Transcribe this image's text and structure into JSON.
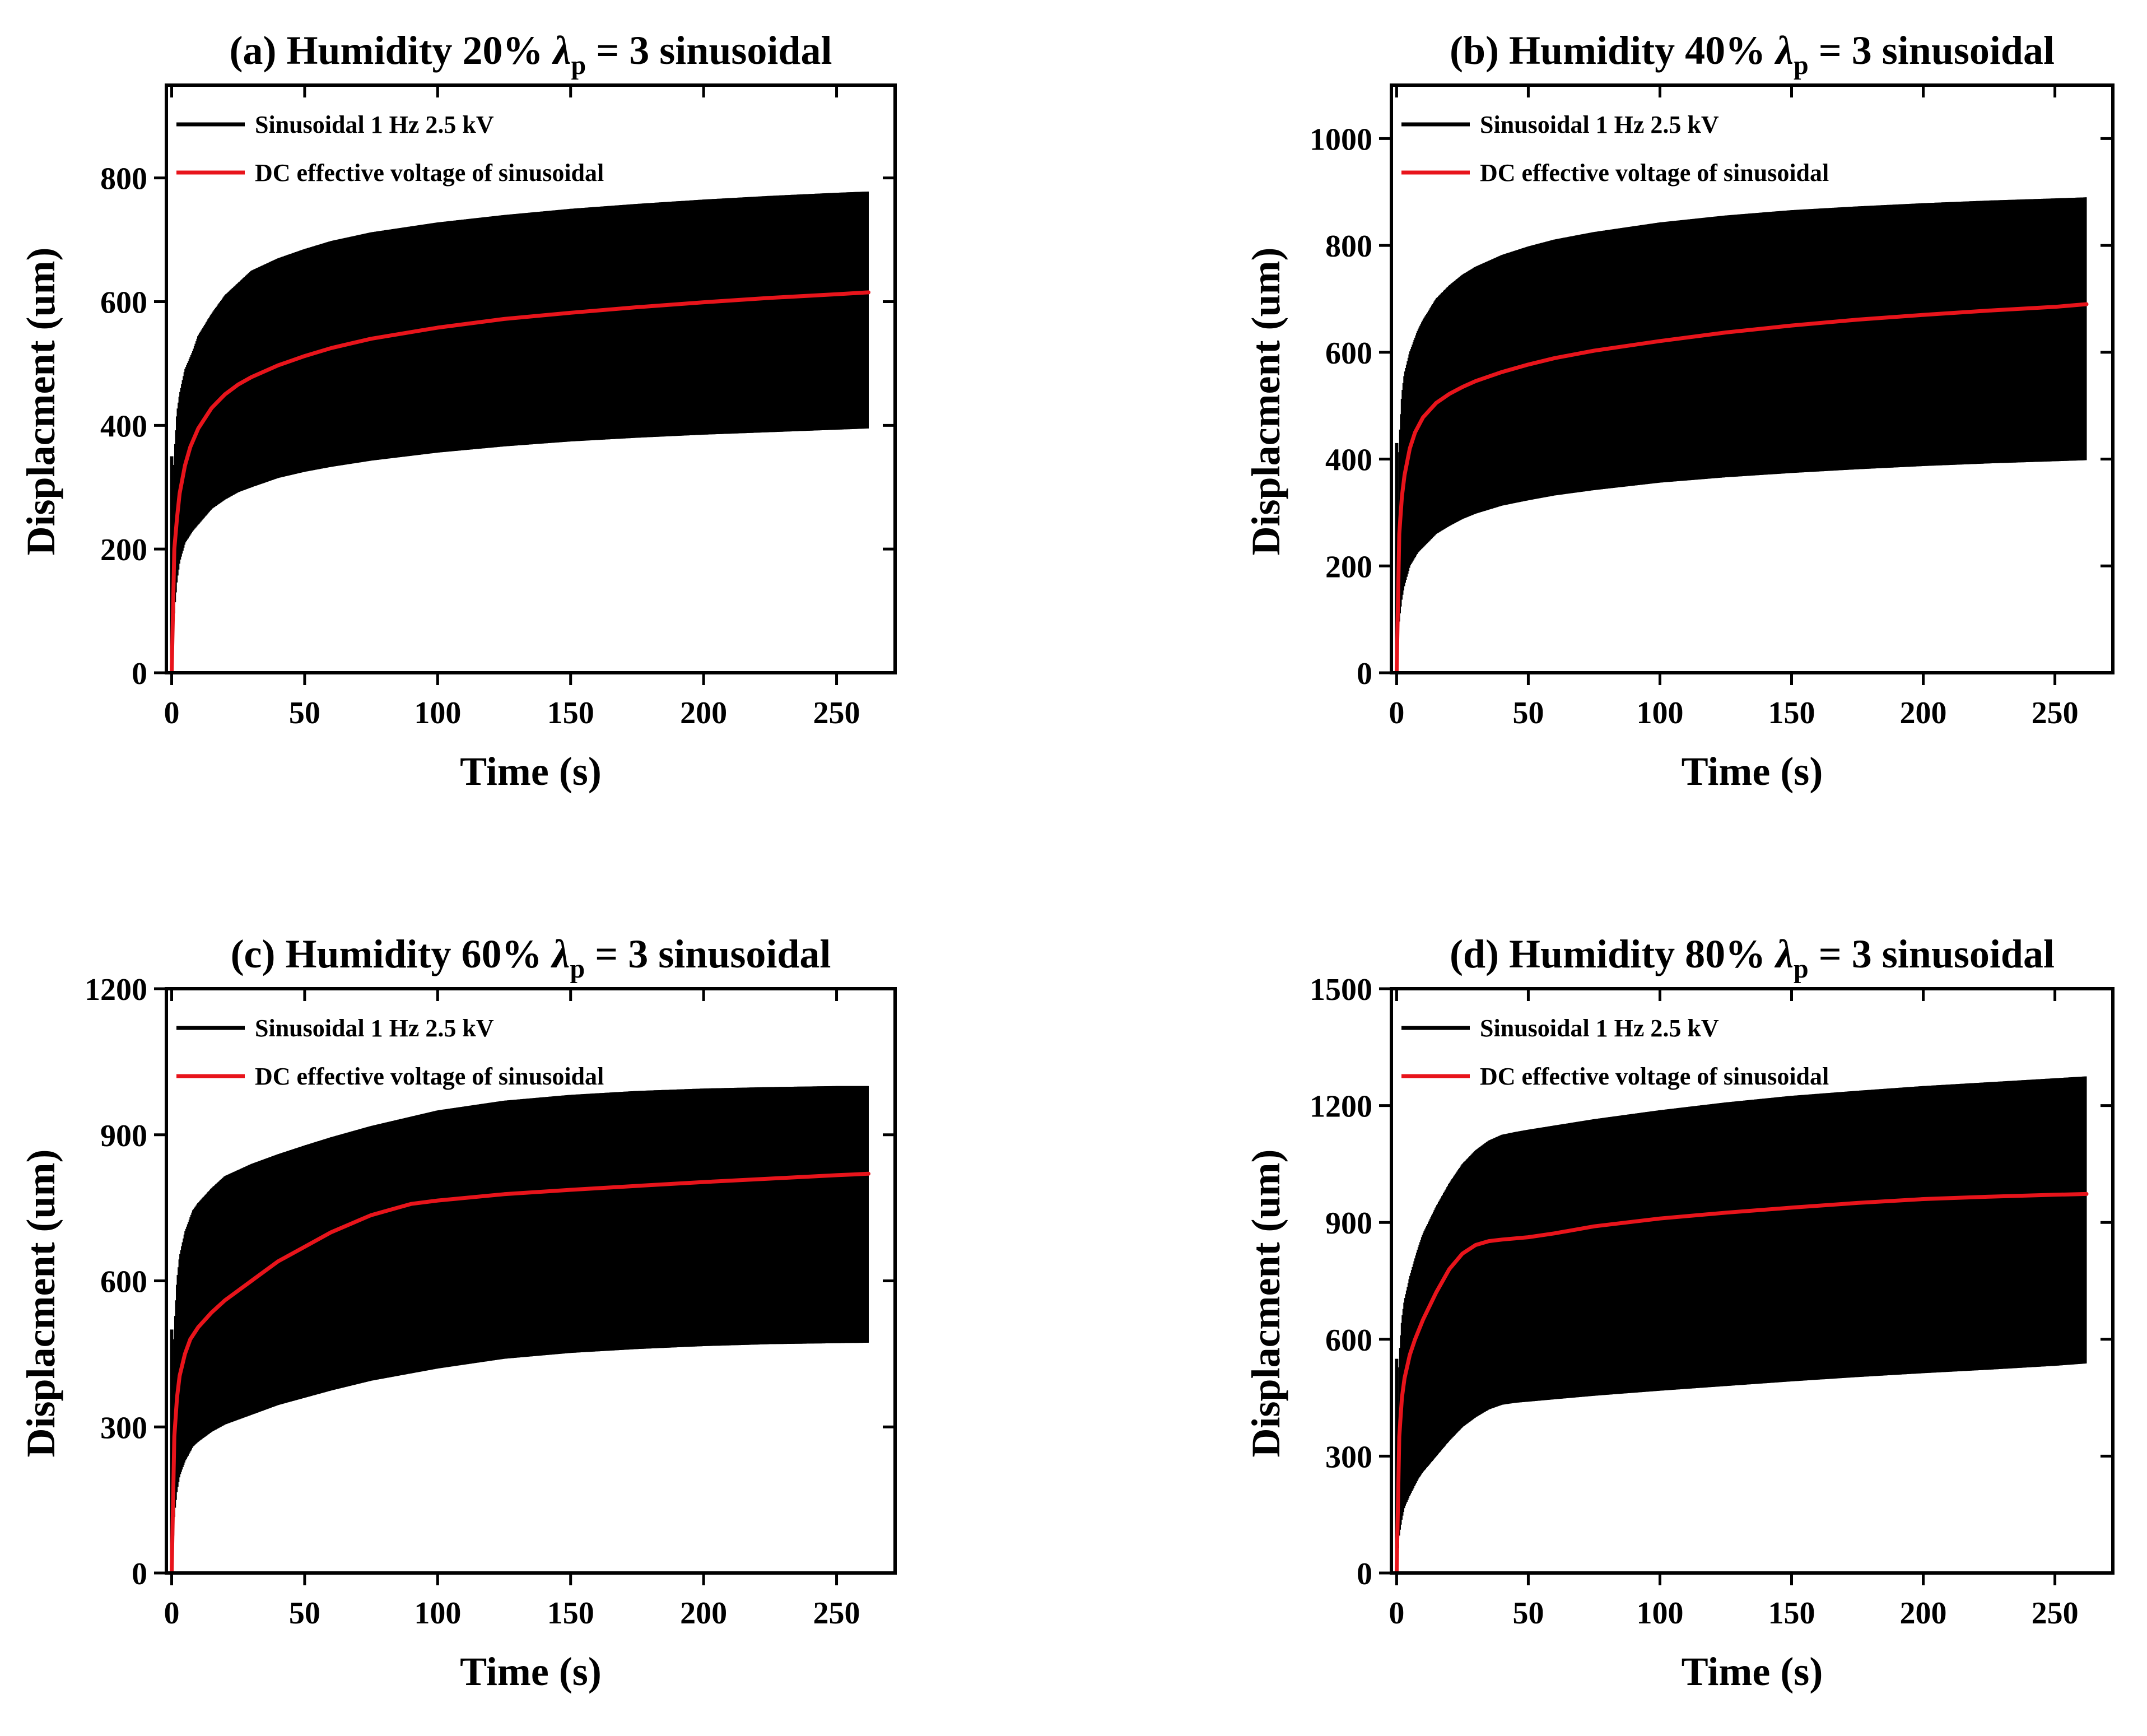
{
  "colors": {
    "oscillation": "#000000",
    "dc_effective": "#e8141b",
    "axes": "#000000"
  },
  "chart_data": [
    {
      "type": "line",
      "panel": "a",
      "title": "(a) Humidity 20%  λp = 3  sinusoidal",
      "title_parts": {
        "prefix": "(a) Humidity 20%  ",
        "symbol": "λ",
        "subscript": "p",
        "suffix": " = 3  sinusoidal"
      },
      "xlabel": "Time (s)",
      "ylabel": "Displacment (um)",
      "xlim": [
        -2,
        272
      ],
      "ylim": [
        0,
        950
      ],
      "xticks": [
        0,
        50,
        100,
        150,
        200,
        250
      ],
      "yticks": [
        0,
        200,
        400,
        600,
        800
      ],
      "legend_position": "top-left",
      "series": [
        {
          "name": "Sinusoidal 1 Hz 2.5 kV",
          "kind": "oscillation-band",
          "color": "#000000",
          "x": [
            0,
            1,
            2,
            3,
            5,
            8,
            10,
            15,
            20,
            25,
            30,
            40,
            50,
            60,
            75,
            100,
            125,
            150,
            175,
            200,
            225,
            250,
            262
          ],
          "upper": [
            0,
            350,
            420,
            450,
            490,
            520,
            545,
            580,
            610,
            630,
            650,
            670,
            685,
            698,
            712,
            728,
            740,
            750,
            758,
            765,
            771,
            776,
            778
          ],
          "lower": [
            0,
            100,
            150,
            180,
            210,
            230,
            240,
            265,
            280,
            292,
            300,
            315,
            325,
            333,
            343,
            356,
            366,
            374,
            380,
            385,
            389,
            393,
            395
          ]
        },
        {
          "name": "DC effective voltage of sinusoidal",
          "kind": "line",
          "color": "#e8141b",
          "x": [
            0,
            1,
            2,
            3,
            5,
            7,
            10,
            15,
            20,
            25,
            30,
            40,
            50,
            60,
            75,
            100,
            125,
            150,
            175,
            200,
            225,
            250,
            262
          ],
          "y": [
            0,
            200,
            250,
            290,
            335,
            365,
            395,
            428,
            450,
            466,
            478,
            497,
            512,
            525,
            540,
            558,
            572,
            582,
            591,
            599,
            606,
            612,
            615
          ]
        }
      ]
    },
    {
      "type": "line",
      "panel": "b",
      "title": "(b) Humidity 40%  λp = 3  sinusoidal",
      "title_parts": {
        "prefix": "(b) Humidity 40%  ",
        "symbol": "λ",
        "subscript": "p",
        "suffix": " = 3  sinusoidal"
      },
      "xlabel": "Time (s)",
      "ylabel": "Displacment (um)",
      "xlim": [
        -2,
        272
      ],
      "ylim": [
        0,
        1100
      ],
      "xticks": [
        0,
        50,
        100,
        150,
        200,
        250
      ],
      "yticks": [
        0,
        200,
        400,
        600,
        800,
        1000
      ],
      "legend_position": "top-left",
      "series": [
        {
          "name": "Sinusoidal 1 Hz 2.5 kV",
          "kind": "oscillation-band",
          "color": "#000000",
          "x": [
            0,
            1,
            2,
            3,
            5,
            8,
            10,
            15,
            20,
            25,
            30,
            40,
            50,
            60,
            75,
            100,
            125,
            150,
            175,
            200,
            225,
            250,
            262
          ],
          "upper": [
            0,
            430,
            520,
            560,
            600,
            640,
            660,
            700,
            725,
            745,
            760,
            782,
            798,
            811,
            825,
            843,
            856,
            866,
            873,
            879,
            884,
            888,
            890
          ],
          "lower": [
            0,
            100,
            140,
            165,
            200,
            225,
            235,
            260,
            275,
            288,
            298,
            313,
            323,
            332,
            342,
            356,
            366,
            374,
            381,
            387,
            392,
            396,
            398
          ]
        },
        {
          "name": "DC effective voltage of sinusoidal",
          "kind": "line",
          "color": "#e8141b",
          "x": [
            0,
            1,
            2,
            3,
            5,
            7,
            10,
            15,
            20,
            25,
            30,
            40,
            50,
            60,
            75,
            100,
            125,
            150,
            175,
            200,
            225,
            250,
            262
          ],
          "y": [
            0,
            260,
            330,
            370,
            420,
            450,
            478,
            505,
            522,
            535,
            546,
            563,
            577,
            589,
            603,
            621,
            637,
            650,
            661,
            670,
            678,
            685,
            690
          ]
        }
      ]
    },
    {
      "type": "line",
      "panel": "c",
      "title": "(c) Humidity 60%  λp = 3  sinusoidal",
      "title_parts": {
        "prefix": "(c) Humidity 60%  ",
        "symbol": "λ",
        "subscript": "p",
        "suffix": " = 3  sinusoidal"
      },
      "xlabel": "Time (s)",
      "ylabel": "Displacment (um)",
      "xlim": [
        -2,
        272
      ],
      "ylim": [
        0,
        1200
      ],
      "xticks": [
        0,
        50,
        100,
        150,
        200,
        250
      ],
      "yticks": [
        0,
        300,
        600,
        900,
        1200
      ],
      "legend_position": "top-left",
      "series": [
        {
          "name": "Sinusoidal 1 Hz 2.5 kV",
          "kind": "oscillation-band",
          "color": "#000000",
          "x": [
            0,
            1,
            2,
            3,
            5,
            8,
            10,
            15,
            20,
            30,
            40,
            50,
            60,
            75,
            100,
            125,
            150,
            175,
            200,
            225,
            250,
            262
          ],
          "upper": [
            0,
            500,
            600,
            650,
            700,
            745,
            760,
            790,
            815,
            840,
            860,
            878,
            895,
            918,
            950,
            970,
            982,
            990,
            995,
            998,
            1000,
            1000
          ],
          "lower": [
            0,
            120,
            170,
            200,
            230,
            260,
            270,
            290,
            305,
            325,
            345,
            360,
            375,
            395,
            420,
            440,
            452,
            460,
            466,
            470,
            472,
            473
          ]
        },
        {
          "name": "DC effective voltage of sinusoidal",
          "kind": "line",
          "color": "#e8141b",
          "x": [
            0,
            1,
            2,
            3,
            5,
            7,
            10,
            15,
            20,
            30,
            40,
            50,
            60,
            75,
            90,
            100,
            125,
            150,
            175,
            200,
            225,
            250,
            262
          ],
          "y": [
            0,
            280,
            360,
            405,
            450,
            480,
            505,
            535,
            560,
            600,
            640,
            670,
            700,
            735,
            758,
            765,
            778,
            787,
            795,
            803,
            810,
            817,
            820
          ]
        }
      ]
    },
    {
      "type": "line",
      "panel": "d",
      "title": "(d) Humidity 80%  λp = 3  sinusoidal",
      "title_parts": {
        "prefix": "(d) Humidity 80%  ",
        "symbol": "λ",
        "subscript": "p",
        "suffix": " = 3  sinusoidal"
      },
      "xlabel": "Time (s)",
      "ylabel": "Displacment (um)",
      "xlim": [
        -2,
        272
      ],
      "ylim": [
        0,
        1500
      ],
      "xticks": [
        0,
        50,
        100,
        150,
        200,
        250
      ],
      "yticks": [
        0,
        300,
        600,
        900,
        1200,
        1500
      ],
      "legend_position": "top-left",
      "series": [
        {
          "name": "Sinusoidal 1 Hz 2.5 kV",
          "kind": "oscillation-band",
          "color": "#000000",
          "x": [
            0,
            1,
            2,
            3,
            5,
            8,
            10,
            15,
            20,
            25,
            30,
            35,
            40,
            45,
            50,
            75,
            100,
            125,
            150,
            175,
            200,
            225,
            250,
            262
          ],
          "upper": [
            0,
            550,
            650,
            700,
            760,
            830,
            870,
            940,
            1000,
            1050,
            1085,
            1110,
            1125,
            1132,
            1138,
            1165,
            1188,
            1208,
            1225,
            1238,
            1250,
            1260,
            1270,
            1275
          ],
          "lower": [
            0,
            100,
            140,
            170,
            200,
            240,
            260,
            300,
            340,
            375,
            400,
            420,
            432,
            437,
            440,
            455,
            468,
            480,
            492,
            503,
            513,
            522,
            532,
            538
          ]
        },
        {
          "name": "DC effective voltage of sinusoidal",
          "kind": "line",
          "color": "#e8141b",
          "x": [
            0,
            1,
            2,
            3,
            5,
            7,
            10,
            15,
            20,
            25,
            30,
            35,
            40,
            50,
            60,
            75,
            100,
            125,
            150,
            175,
            200,
            225,
            250,
            262
          ],
          "y": [
            0,
            350,
            450,
            500,
            560,
            600,
            650,
            720,
            780,
            820,
            842,
            852,
            856,
            862,
            872,
            890,
            910,
            925,
            938,
            950,
            960,
            966,
            971,
            973
          ]
        }
      ]
    }
  ]
}
